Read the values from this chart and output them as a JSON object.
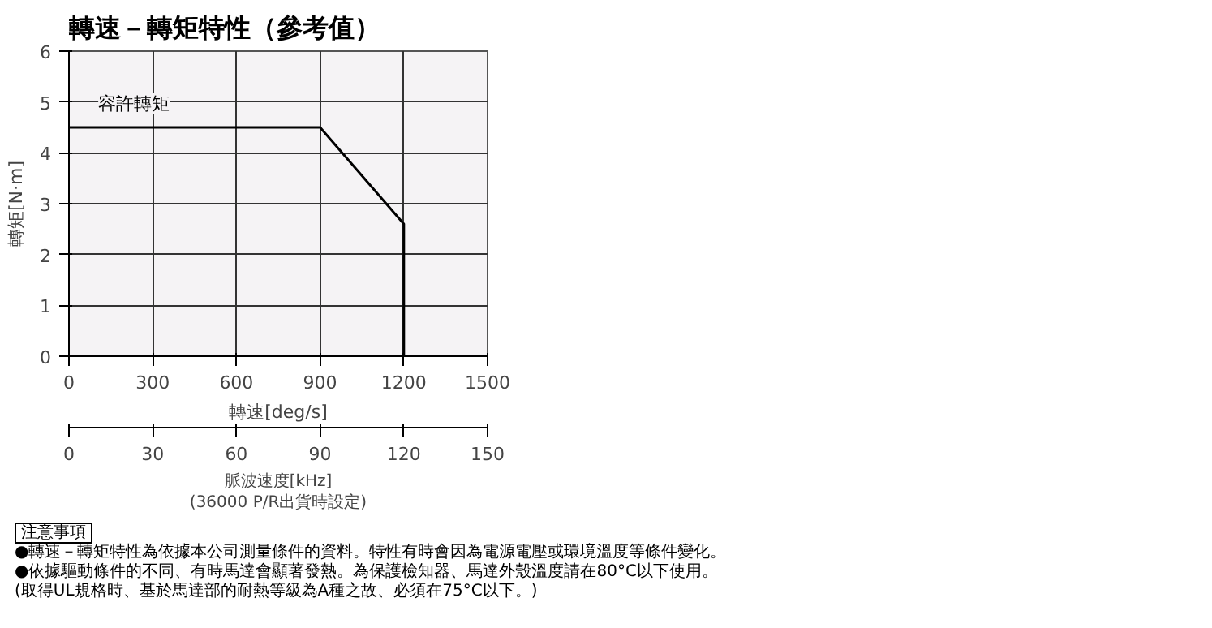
{
  "chart_data": {
    "type": "line",
    "title": "轉速－轉矩特性（參考值）",
    "xlabel": "轉速[deg/s]",
    "ylabel": "轉矩[N·m]",
    "x2label": "脈波速度[kHz]",
    "xlim": [
      0,
      1500
    ],
    "xticks": [
      0,
      300,
      600,
      900,
      1200,
      1500
    ],
    "x2lim": [
      0,
      150
    ],
    "x2ticks": [
      0,
      30,
      60,
      90,
      120,
      150
    ],
    "ylim": [
      0,
      6
    ],
    "yticks": [
      0,
      1,
      2,
      3,
      4,
      5,
      6
    ],
    "grid": true,
    "series": [
      {
        "name": "容許轉矩",
        "color": "#000000",
        "x": [
          0,
          900,
          1200,
          1200
        ],
        "values": [
          4.5,
          4.5,
          2.6,
          0
        ]
      }
    ],
    "annotations": [
      "(36000 P/R出貨時設定)",
      "注意事項",
      "●轉速－轉矩特性為依據本公司測量條件的資料。特性有時會因為電源電壓或環境溫度等條件變化。",
      "●依據驅動條件的不同、有時馬達會顯著發熱。為保護檢知器、馬達外殼溫度請在80°C以下使用。",
      "(取得UL規格時、基於馬達部的耐熱等級為A種之故、必須在75°C以下。)"
    ]
  }
}
